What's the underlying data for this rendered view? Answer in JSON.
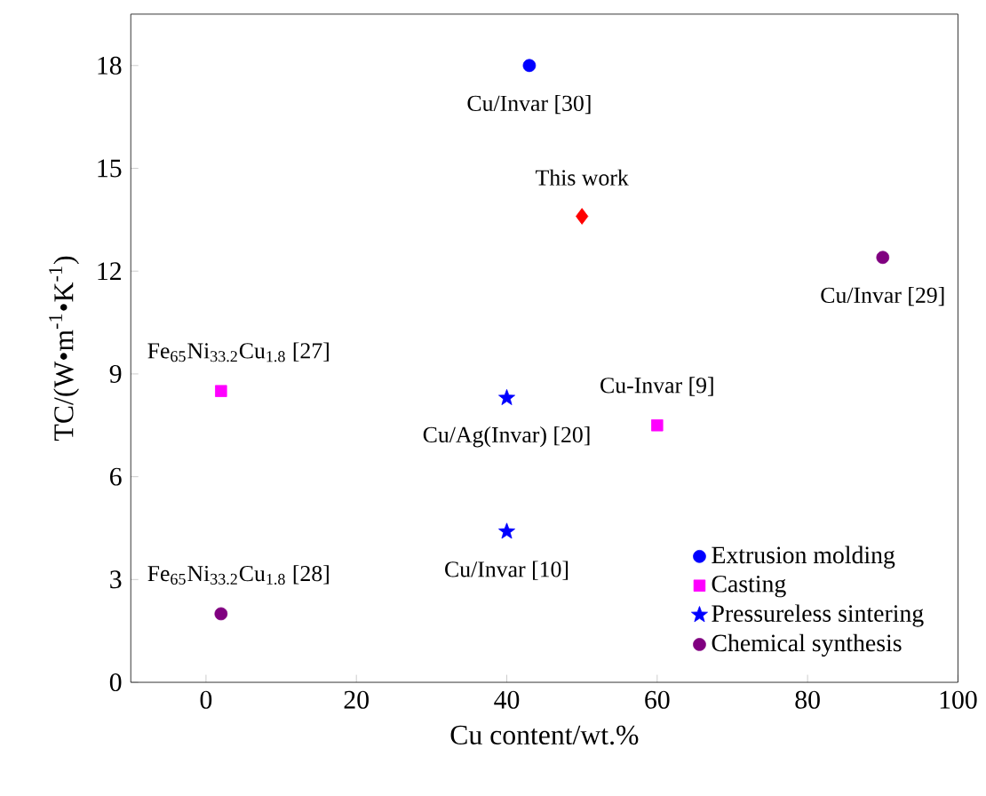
{
  "chart_data": {
    "type": "scatter",
    "xlabel": "Cu content/wt.%",
    "ylabel": "TC/(W•m$^{-1}$•K$^{-1}$)",
    "xlim": [
      -10,
      100
    ],
    "ylim": [
      0,
      19.5
    ],
    "xticks": [
      0,
      20,
      40,
      60,
      80,
      100
    ],
    "yticks": [
      0,
      3,
      6,
      9,
      12,
      15,
      18
    ],
    "legend": "bottom right",
    "grid": false,
    "series": [
      {
        "name": "Extrusion molding",
        "color": "#0000ff",
        "marker": "circle",
        "x": [
          43
        ],
        "values": [
          18
        ]
      },
      {
        "name": "Casting",
        "color": "#ff00ff",
        "marker": "square",
        "x": [
          2,
          60
        ],
        "values": [
          8.5,
          7.5
        ]
      },
      {
        "name": "Pressureless sintering",
        "color": "#0000ff",
        "marker": "star",
        "x": [
          40,
          40
        ],
        "values": [
          8.3,
          4.4
        ]
      },
      {
        "name": "Chemical synthesis",
        "color": "#800080",
        "marker": "circle",
        "x": [
          90,
          2
        ],
        "values": [
          12.4,
          2.0
        ]
      },
      {
        "color": "#ff0000",
        "marker": "diamond",
        "x": [
          50
        ],
        "values": [
          13.6
        ]
      }
    ],
    "annotations": [
      {
        "text": "Cu/Invar [30]",
        "x": 43,
        "y": 18
      },
      {
        "text": "This work",
        "x": 50,
        "y": 13.6
      },
      {
        "text": "Cu/Invar [29]",
        "x": 90,
        "y": 12.4
      },
      {
        "text": "Fe$_{65}$Ni$_{33.2}$Cu$_{1.8}$ [27]",
        "x": 2,
        "y": 8.5
      },
      {
        "text": "Cu-Invar [9]",
        "x": 60,
        "y": 7.5
      },
      {
        "text": "Cu/Ag(Invar) [20]",
        "x": 40,
        "y": 8.3
      },
      {
        "text": "Cu/Invar [10]",
        "x": 40,
        "y": 4.4
      },
      {
        "text": "Fe$_{65}$Ni$_{33.2}$Cu$_{1.8}$ [28]",
        "x": 2,
        "y": 2.0
      }
    ]
  }
}
